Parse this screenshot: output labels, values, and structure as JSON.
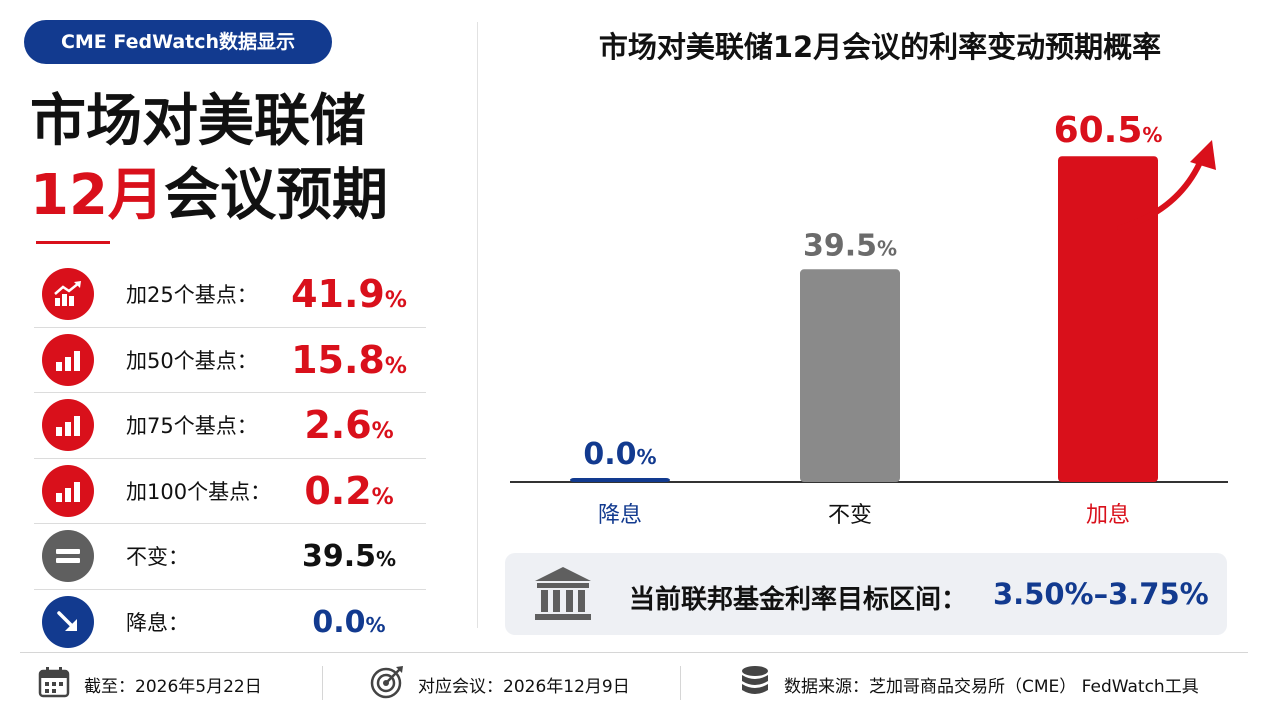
{
  "badge": "CME FedWatch数据显示",
  "headline": {
    "line1": "市场对美联储",
    "line2_red": "12月",
    "line2_rest": "会议预期"
  },
  "rows": [
    {
      "icon": "trend-up-icon",
      "label": "加25个基点：",
      "value": "41.9",
      "unit": "%",
      "color": "red"
    },
    {
      "icon": "bar-signal-icon",
      "label": "加50个基点：",
      "value": "15.8",
      "unit": "%",
      "color": "red"
    },
    {
      "icon": "bar-signal-icon",
      "label": "加75个基点：",
      "value": "2.6",
      "unit": "%",
      "color": "red"
    },
    {
      "icon": "bar-signal-icon",
      "label": "加100个基点：",
      "value": "0.2",
      "unit": "%",
      "color": "red"
    },
    {
      "icon": "equals-icon",
      "label": "不变：",
      "value": "39.5",
      "unit": "%",
      "color": "black"
    },
    {
      "icon": "arrow-down-right-icon",
      "label": "降息：",
      "value": "0.0",
      "unit": "%",
      "color": "blue"
    }
  ],
  "chart_data": {
    "type": "bar",
    "title": "市场对美联储12月会议的利率变动预期概率",
    "categories": [
      "降息",
      "不变",
      "加息"
    ],
    "values": [
      0.0,
      39.5,
      60.5
    ],
    "value_labels": [
      "0.0",
      "39.5",
      "60.5"
    ],
    "unit": "%",
    "colors": [
      "#123a8f",
      "#8a8a8a",
      "#d9101b"
    ],
    "label_colors": [
      "#123a8f",
      "#111111",
      "#d9101b"
    ],
    "value_label_colors": [
      "#123a8f",
      "#6b6b6b",
      "#d9101b"
    ],
    "ylim": [
      0,
      65
    ],
    "grid": false,
    "legend": "none"
  },
  "rate": {
    "label": "当前联邦基金利率目标区间：",
    "value": "3.50%–3.75%"
  },
  "footer": {
    "date": "截至：2026年5月22日",
    "meeting": "对应会议：2026年12月9日",
    "source": "数据来源：芝加哥商品交易所（CME） FedWatch工具"
  },
  "colors": {
    "accent_red": "#d9101b",
    "navy": "#123a8f",
    "gray": "#5f5f5f"
  }
}
